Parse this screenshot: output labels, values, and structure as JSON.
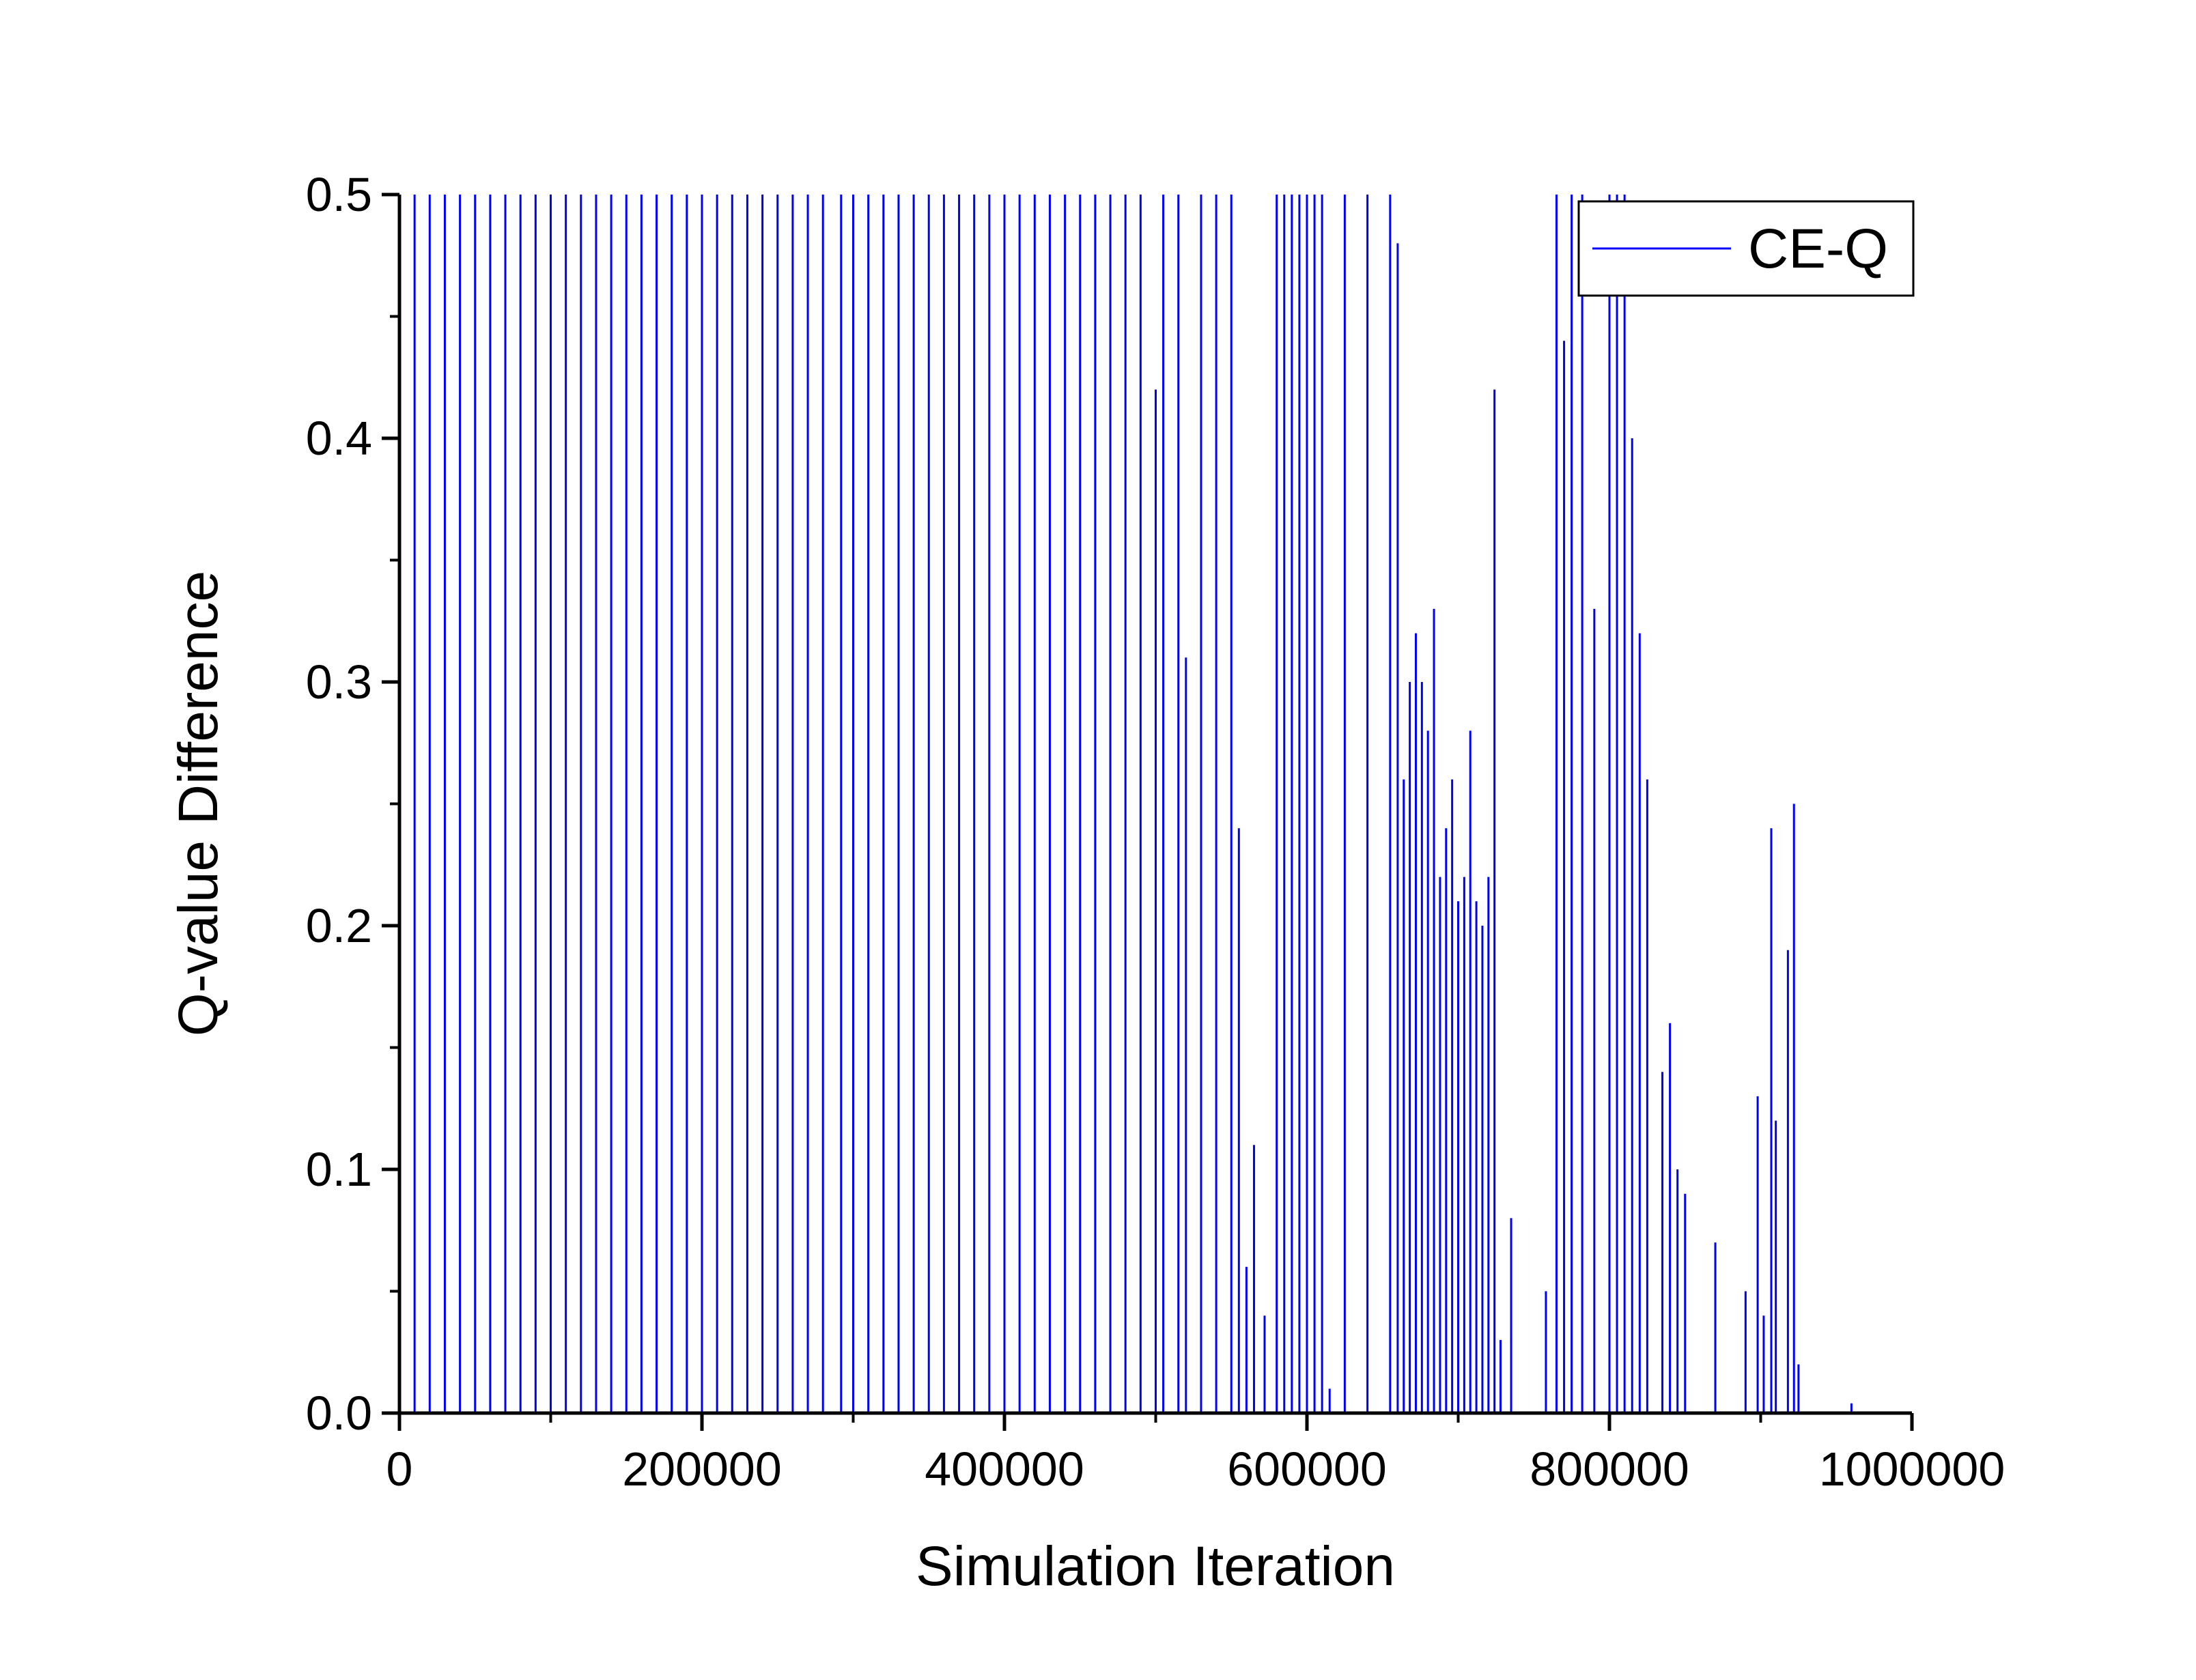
{
  "chart_data": {
    "type": "line",
    "title": "",
    "xlabel": "Simulation Iteration",
    "ylabel": "Q-value Difference",
    "xlim": [
      0,
      1000000
    ],
    "ylim": [
      0,
      0.5
    ],
    "x_ticks": [
      0,
      200000,
      400000,
      600000,
      800000,
      1000000
    ],
    "x_tick_labels": [
      "0",
      "200000",
      "400000",
      "600000",
      "800000",
      "1000000"
    ],
    "y_ticks": [
      0.0,
      0.1,
      0.2,
      0.3,
      0.4,
      0.5
    ],
    "y_tick_labels": [
      "0.0",
      "0.1",
      "0.2",
      "0.3",
      "0.4",
      "0.5"
    ],
    "grid": false,
    "legend_position": "top-right",
    "series": [
      {
        "name": "CE-Q",
        "color": "#0000ff",
        "spike_style": "vertical spikes from 0, clipped at the top of the axis",
        "values": [
          [
            10000,
            0.5
          ],
          [
            20000,
            0.5
          ],
          [
            30000,
            0.5
          ],
          [
            40000,
            0.5
          ],
          [
            50000,
            0.5
          ],
          [
            60000,
            0.5
          ],
          [
            70000,
            0.5
          ],
          [
            80000,
            0.5
          ],
          [
            90000,
            0.5
          ],
          [
            100000,
            0.5
          ],
          [
            110000,
            0.5
          ],
          [
            120000,
            0.5
          ],
          [
            130000,
            0.5
          ],
          [
            140000,
            0.5
          ],
          [
            150000,
            0.5
          ],
          [
            160000,
            0.5
          ],
          [
            170000,
            0.5
          ],
          [
            180000,
            0.5
          ],
          [
            190000,
            0.5
          ],
          [
            200000,
            0.5
          ],
          [
            210000,
            0.5
          ],
          [
            220000,
            0.5
          ],
          [
            230000,
            0.5
          ],
          [
            240000,
            0.5
          ],
          [
            250000,
            0.5
          ],
          [
            260000,
            0.5
          ],
          [
            270000,
            0.5
          ],
          [
            280000,
            0.5
          ],
          [
            292000,
            0.5
          ],
          [
            300000,
            0.5
          ],
          [
            310000,
            0.5
          ],
          [
            320000,
            0.5
          ],
          [
            330000,
            0.5
          ],
          [
            340000,
            0.5
          ],
          [
            350000,
            0.5
          ],
          [
            360000,
            0.5
          ],
          [
            370000,
            0.5
          ],
          [
            380000,
            0.5
          ],
          [
            390000,
            0.5
          ],
          [
            400000,
            0.5
          ],
          [
            410000,
            0.5
          ],
          [
            420000,
            0.5
          ],
          [
            430000,
            0.5
          ],
          [
            440000,
            0.5
          ],
          [
            450000,
            0.5
          ],
          [
            460000,
            0.5
          ],
          [
            470000,
            0.5
          ],
          [
            480000,
            0.5
          ],
          [
            490000,
            0.5
          ],
          [
            500000,
            0.42
          ],
          [
            505000,
            0.5
          ],
          [
            515000,
            0.5
          ],
          [
            520000,
            0.31
          ],
          [
            530000,
            0.5
          ],
          [
            540000,
            0.5
          ],
          [
            550000,
            0.5
          ],
          [
            555000,
            0.24
          ],
          [
            560000,
            0.06
          ],
          [
            565000,
            0.11
          ],
          [
            572000,
            0.04
          ],
          [
            580000,
            0.5
          ],
          [
            585000,
            0.5
          ],
          [
            590000,
            0.5
          ],
          [
            595000,
            0.5
          ],
          [
            600000,
            0.5
          ],
          [
            605000,
            0.5
          ],
          [
            610000,
            0.5
          ],
          [
            615000,
            0.01
          ],
          [
            625000,
            0.5
          ],
          [
            640000,
            0.5
          ],
          [
            655000,
            0.5
          ],
          [
            660000,
            0.48
          ],
          [
            664000,
            0.26
          ],
          [
            668000,
            0.3
          ],
          [
            672000,
            0.32
          ],
          [
            676000,
            0.3
          ],
          [
            680000,
            0.28
          ],
          [
            684000,
            0.33
          ],
          [
            688000,
            0.22
          ],
          [
            692000,
            0.24
          ],
          [
            696000,
            0.26
          ],
          [
            700000,
            0.21
          ],
          [
            704000,
            0.22
          ],
          [
            708000,
            0.28
          ],
          [
            712000,
            0.21
          ],
          [
            716000,
            0.2
          ],
          [
            720000,
            0.22
          ],
          [
            724000,
            0.42
          ],
          [
            728000,
            0.03
          ],
          [
            735000,
            0.08
          ],
          [
            758000,
            0.05
          ],
          [
            765000,
            0.5
          ],
          [
            770000,
            0.44
          ],
          [
            775000,
            0.5
          ],
          [
            782000,
            0.5
          ],
          [
            790000,
            0.33
          ],
          [
            800000,
            0.5
          ],
          [
            805000,
            0.5
          ],
          [
            810000,
            0.5
          ],
          [
            815000,
            0.4
          ],
          [
            820000,
            0.32
          ],
          [
            825000,
            0.26
          ],
          [
            835000,
            0.14
          ],
          [
            840000,
            0.16
          ],
          [
            845000,
            0.1
          ],
          [
            850000,
            0.09
          ],
          [
            870000,
            0.07
          ],
          [
            890000,
            0.05
          ],
          [
            898000,
            0.13
          ],
          [
            902000,
            0.04
          ],
          [
            907000,
            0.24
          ],
          [
            910000,
            0.12
          ],
          [
            918000,
            0.19
          ],
          [
            922000,
            0.25
          ],
          [
            925000,
            0.02
          ],
          [
            960000,
            0.004
          ]
        ]
      }
    ]
  }
}
